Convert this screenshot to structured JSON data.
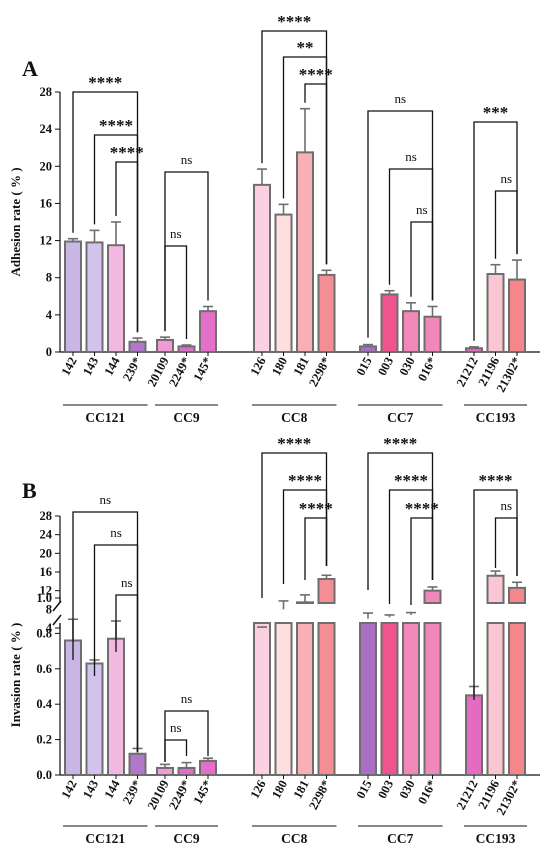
{
  "chart_data": [
    {
      "panel": "A",
      "type": "bar",
      "ylabel": "Adhesion rate ( % )",
      "ylim": [
        0,
        28
      ],
      "yticks": [
        "0",
        "4",
        "8",
        "12",
        "16",
        "20",
        "24",
        "28"
      ],
      "groups": [
        {
          "name": "CC121",
          "categories": [
            "142",
            "143",
            "144",
            "239*"
          ],
          "colors": [
            "#c9b6e4",
            "#d3c3ec",
            "#f2b8e0",
            "#b277c8"
          ]
        },
        {
          "name": "CC9",
          "categories": [
            "20109",
            "2249*",
            "145*"
          ],
          "colors": [
            "#f29ad3",
            "#e06ec9",
            "#e36fc8"
          ]
        },
        {
          "name": "CC8",
          "categories": [
            "126",
            "180",
            "181",
            "2298*"
          ],
          "colors": [
            "#fbd0e0",
            "#fde0de",
            "#f8b0b5",
            "#f48e95"
          ]
        },
        {
          "name": "CC7",
          "categories": [
            "015",
            "003",
            "030",
            "016*"
          ],
          "colors": [
            "#a870c2",
            "#f0548f",
            "#f287ba",
            "#f287ba"
          ]
        },
        {
          "name": "CC193",
          "categories": [
            "21212",
            "21196",
            "21302*"
          ],
          "colors": [
            "#e46ac2",
            "#fac6d4",
            "#f4868c"
          ]
        }
      ],
      "values": [
        11.9,
        11.8,
        11.5,
        1.1,
        1.3,
        0.6,
        4.4,
        18.0,
        14.8,
        21.5,
        8.3,
        0.6,
        6.2,
        4.4,
        3.8,
        0.4,
        8.4,
        7.8
      ],
      "errors": [
        0.3,
        1.3,
        2.5,
        0.4,
        0.3,
        0.15,
        0.5,
        1.7,
        1.1,
        4.7,
        0.5,
        0.2,
        0.4,
        0.9,
        1.1,
        0.15,
        1.0,
        2.1
      ],
      "brackets": [
        {
          "from": "142",
          "to": "239*",
          "label": "****"
        },
        {
          "from": "143",
          "to": "239*",
          "label": "****"
        },
        {
          "from": "144",
          "to": "239*",
          "label": "****"
        },
        {
          "from": "20109",
          "to": "145*",
          "label": "ns"
        },
        {
          "from": "20109",
          "to": "2249*",
          "label": "ns"
        },
        {
          "from": "126",
          "to": "2298*",
          "label": "****"
        },
        {
          "from": "180",
          "to": "2298*",
          "label": "**"
        },
        {
          "from": "181",
          "to": "2298*",
          "label": "****"
        },
        {
          "from": "015",
          "to": "016*",
          "label": "ns"
        },
        {
          "from": "003",
          "to": "016*",
          "label": "ns"
        },
        {
          "from": "030",
          "to": "016*",
          "label": "ns"
        },
        {
          "from": "21212",
          "to": "21302*",
          "label": "***"
        },
        {
          "from": "21196",
          "to": "21302*",
          "label": "ns"
        }
      ]
    },
    {
      "panel": "B",
      "type": "bar",
      "ylabel": "Invasion rate ( % )",
      "axis_break": {
        "lower_ylim": [
          0,
          1.0
        ],
        "upper_ylim": [
          4,
          28
        ]
      },
      "yticks_lower": [
        "0.0",
        "0.2",
        "0.4",
        "0.6",
        "0.8",
        "1.0"
      ],
      "yticks_upper": [
        "4",
        "8",
        "12",
        "16",
        "20",
        "24",
        "28"
      ],
      "groups": [
        {
          "name": "CC121",
          "categories": [
            "142",
            "143",
            "144",
            "239*"
          ],
          "colors": [
            "#c9b6e4",
            "#d3c3ec",
            "#f2b8e0",
            "#b277c8"
          ]
        },
        {
          "name": "CC9",
          "categories": [
            "20109",
            "2249*",
            "145*"
          ],
          "colors": [
            "#f29ad3",
            "#e06ec9",
            "#e36fc8"
          ]
        },
        {
          "name": "CC8",
          "categories": [
            "126",
            "180",
            "181",
            "2298*"
          ],
          "colors": [
            "#fbd0e0",
            "#fde0de",
            "#f8b0b5",
            "#f48e95"
          ]
        },
        {
          "name": "CC7",
          "categories": [
            "015",
            "003",
            "030",
            "016*"
          ],
          "colors": [
            "#a870c2",
            "#f0548f",
            "#f287ba",
            "#f287ba"
          ]
        },
        {
          "name": "CC193",
          "categories": [
            "21212",
            "21196",
            "21302*"
          ],
          "colors": [
            "#e46ac2",
            "#fac6d4",
            "#f4868c"
          ]
        }
      ],
      "values": [
        0.76,
        0.63,
        0.77,
        0.12,
        0.04,
        0.04,
        0.08,
        4.0,
        8.0,
        9.5,
        14.5,
        6.0,
        6.3,
        6.8,
        12.0,
        0.45,
        15.2,
        12.6
      ],
      "errors": [
        0.12,
        0.02,
        0.1,
        0.03,
        0.02,
        0.03,
        0.015,
        0.2,
        1.8,
        1.6,
        0.8,
        1.2,
        0.5,
        0.5,
        0.8,
        0.05,
        1.0,
        1.2
      ],
      "brackets": [
        {
          "from": "142",
          "to": "239*",
          "label": "ns"
        },
        {
          "from": "143",
          "to": "239*",
          "label": "ns"
        },
        {
          "from": "144",
          "to": "239*",
          "label": "ns"
        },
        {
          "from": "20109",
          "to": "145*",
          "label": "ns"
        },
        {
          "from": "20109",
          "to": "2249*",
          "label": "ns"
        },
        {
          "from": "126",
          "to": "2298*",
          "label": "****"
        },
        {
          "from": "180",
          "to": "2298*",
          "label": "****"
        },
        {
          "from": "181",
          "to": "2298*",
          "label": "****"
        },
        {
          "from": "015",
          "to": "016*",
          "label": "****"
        },
        {
          "from": "003",
          "to": "016*",
          "label": "****"
        },
        {
          "from": "030",
          "to": "016*",
          "label": "****"
        },
        {
          "from": "21212",
          "to": "21302*",
          "label": "****"
        },
        {
          "from": "21196",
          "to": "21302*",
          "label": "ns"
        }
      ]
    }
  ]
}
